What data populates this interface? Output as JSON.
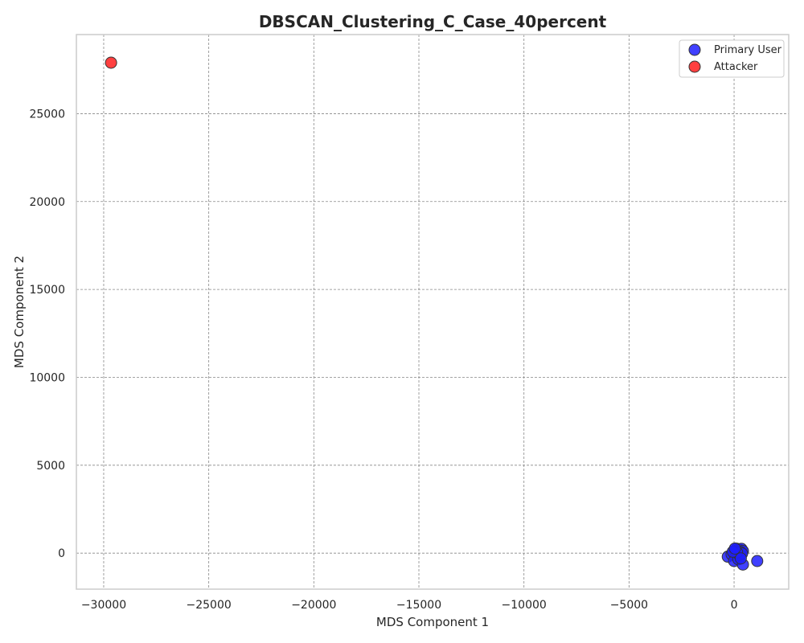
{
  "chart_data": {
    "type": "scatter",
    "title": "DBSCAN_Clustering_C_Case_40percent",
    "xlabel": "MDS Component 1",
    "ylabel": "MDS Component 2",
    "xlim": [
      -31300,
      2600
    ],
    "ylim": [
      -2050,
      29500
    ],
    "xticks": [
      -30000,
      -25000,
      -20000,
      -15000,
      -10000,
      -5000,
      0
    ],
    "xtick_labels": [
      "−30000",
      "−25000",
      "−20000",
      "−15000",
      "−10000",
      "−5000",
      "0"
    ],
    "yticks": [
      0,
      5000,
      10000,
      15000,
      20000,
      25000
    ],
    "ytick_labels": [
      "0",
      "5000",
      "10000",
      "15000",
      "20000",
      "25000"
    ],
    "grid": true,
    "legend_position": "top-right",
    "series": [
      {
        "name": "Primary User",
        "color": "#1f1fff",
        "points": [
          [
            -300,
            -200
          ],
          [
            -120,
            -80
          ],
          [
            0,
            0
          ],
          [
            60,
            120
          ],
          [
            120,
            250
          ],
          [
            200,
            200
          ],
          [
            280,
            180
          ],
          [
            350,
            240
          ],
          [
            420,
            120
          ],
          [
            300,
            60
          ],
          [
            180,
            -40
          ],
          [
            80,
            -150
          ],
          [
            0,
            -450
          ],
          [
            200,
            -350
          ],
          [
            420,
            -650
          ],
          [
            250,
            -100
          ],
          [
            380,
            -20
          ],
          [
            140,
            40
          ],
          [
            -60,
            80
          ],
          [
            40,
            260
          ],
          [
            1100,
            -450
          ],
          [
            320,
            -300
          ]
        ]
      },
      {
        "name": "Attacker",
        "color": "#ff1f1f",
        "points": [
          [
            -29650,
            27900
          ]
        ]
      }
    ]
  }
}
